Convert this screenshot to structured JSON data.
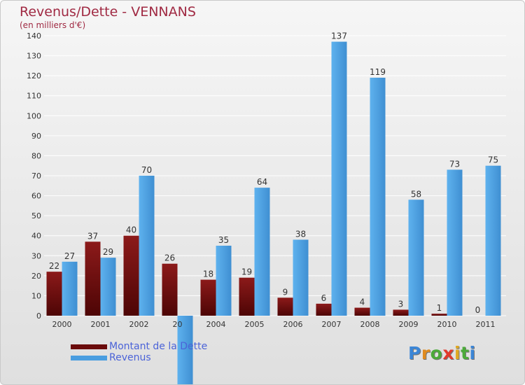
{
  "title": "Revenus/Dette - VENNANS",
  "subtitle": "(en milliers d'€)",
  "logo": {
    "text": "Proxiti",
    "colors": [
      "#3c86d6",
      "#e08a1e",
      "#4caa3a",
      "#e23a2c",
      "#e0a820",
      "#4caa3a",
      "#3c86d6"
    ]
  },
  "colors": {
    "debt_top": "#8c1a1a",
    "debt_bottom": "#4d0505",
    "revenue_light": "#5eb2ee",
    "revenue_dark": "#3f8fd2",
    "title": "#a02a43",
    "legend_text": "#4b63d8",
    "grid": "#ffffff"
  },
  "legend": {
    "items": [
      {
        "label": "Montant de la Dette",
        "color": "#6a0b0b"
      },
      {
        "label": "Revenus",
        "color": "#4a9de0"
      }
    ],
    "placement": "bottom-left"
  },
  "chart_data": {
    "type": "bar",
    "title": "Revenus/Dette - VENNANS",
    "subtitle": "(en milliers d'€)",
    "categories": [
      "2000",
      "2001",
      "2002",
      "2003",
      "2004",
      "2005",
      "2006",
      "2007",
      "2008",
      "2009",
      "2010",
      "2011"
    ],
    "category_labels": [
      "2000",
      "2001",
      "2002",
      "20",
      "2004",
      "2005",
      "2006",
      "2007",
      "2008",
      "2009",
      "2010",
      "2011"
    ],
    "series": [
      {
        "name": "Montant de la Dette",
        "values": [
          22,
          37,
          40,
          26,
          18,
          19,
          9,
          6,
          4,
          3,
          1,
          0
        ]
      },
      {
        "name": "Revenus",
        "values": [
          27,
          29,
          70,
          null,
          35,
          64,
          38,
          137,
          119,
          58,
          73,
          75
        ]
      }
    ],
    "value_labels": [
      [
        "22",
        "37",
        "40",
        "26",
        "18",
        "19",
        "9",
        "6",
        "4",
        "3",
        "1",
        "0"
      ],
      [
        "27",
        "29",
        "70",
        "",
        "35",
        "64",
        "38",
        "137",
        "119",
        "58",
        "73",
        "75"
      ]
    ],
    "ylim": [
      0,
      140
    ],
    "yticks": [
      0,
      10,
      20,
      30,
      40,
      50,
      60,
      70,
      80,
      90,
      100,
      110,
      120,
      130,
      140
    ],
    "grid": true
  }
}
